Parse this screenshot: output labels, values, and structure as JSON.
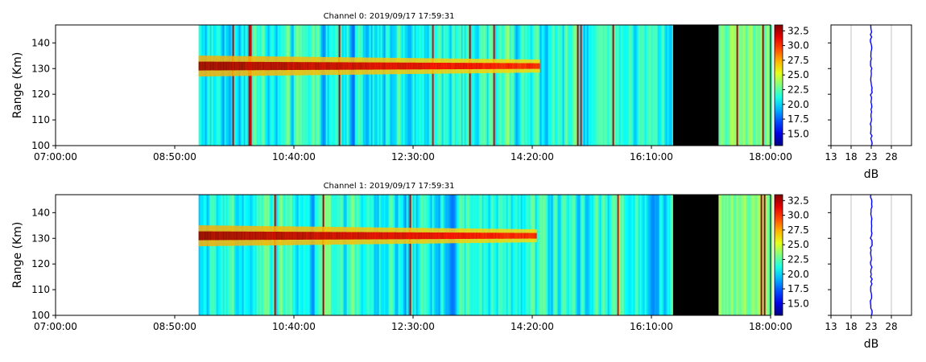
{
  "chart_data": [
    {
      "type": "heatmap",
      "title": "Channel 0: 2019/09/17 17:59:31",
      "ylabel": "Range (Km)",
      "xlabel": "",
      "x_ticks": [
        "07:00:00",
        "08:50:00",
        "10:40:00",
        "12:30:00",
        "14:20:00",
        "16:10:00",
        "18:00:00"
      ],
      "y_ticks": [
        "100",
        "110",
        "120",
        "130",
        "140"
      ],
      "xlim_hours": [
        7.0,
        18.0
      ],
      "ylim": [
        100,
        147
      ],
      "data_start_hour": 9.2,
      "data_end_hour": 18.0,
      "black_gap_hours": [
        16.5,
        17.2
      ],
      "layer_center_km": 131,
      "layer_fade_hour": 14.45,
      "colorbar": {
        "min": 13,
        "max": 33.5,
        "ticks": [
          "15.0",
          "17.5",
          "20.0",
          "22.5",
          "25.0",
          "27.5",
          "30.0",
          "32.5"
        ],
        "colormap": "jet"
      },
      "profile": {
        "xlabel": "dB",
        "x_ticks": [
          "13",
          "18",
          "23",
          "28"
        ],
        "xlim": [
          13,
          33
        ],
        "value_db": 23,
        "color": "#0000ff"
      }
    },
    {
      "type": "heatmap",
      "title": "Channel 1: 2019/09/17 17:59:31",
      "ylabel": "Range (Km)",
      "xlabel": "",
      "x_ticks": [
        "07:00:00",
        "08:50:00",
        "10:40:00",
        "12:30:00",
        "14:20:00",
        "16:10:00",
        "18:00:00"
      ],
      "y_ticks": [
        "100",
        "110",
        "120",
        "130",
        "140"
      ],
      "xlim_hours": [
        7.0,
        18.0
      ],
      "ylim": [
        100,
        147
      ],
      "data_start_hour": 9.2,
      "data_end_hour": 18.0,
      "black_gap_hours": [
        16.5,
        17.2
      ],
      "layer_center_km": 131,
      "layer_fade_hour": 14.4,
      "colorbar": {
        "min": 13,
        "max": 33.5,
        "ticks": [
          "15.0",
          "17.5",
          "20.0",
          "22.5",
          "25.0",
          "27.5",
          "30.0",
          "32.5"
        ],
        "colormap": "jet"
      },
      "profile": {
        "xlabel": "dB",
        "x_ticks": [
          "13",
          "18",
          "23",
          "28"
        ],
        "xlim": [
          13,
          33
        ],
        "value_db": 23,
        "color": "#0000ff"
      }
    }
  ]
}
